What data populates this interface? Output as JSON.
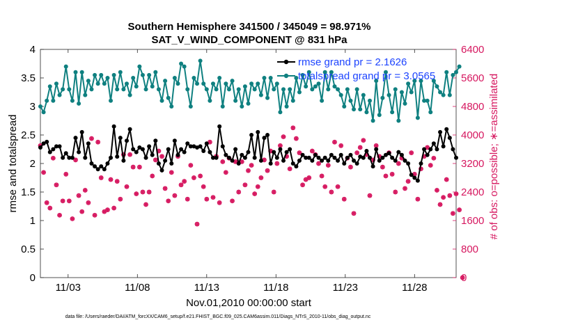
{
  "chart_data": {
    "type": "line",
    "title": "Southern Hemisphere 341500 / 345049 = 98.971%",
    "subtitle": "SAT_V_WIND_COMPONENT @ 831 hPa",
    "xlabel": "Nov.01,2010 00:00:00 start",
    "ylabel": "rmse and totalspread",
    "ylabel_right": "# of obs: o=possible; ∗=assimilated",
    "footnote": "data file: /Users/raeder/DAI/ATM_forcXX/CAM6_setup/f.e21.FHIST_BGC.f09_025.CAM6assim.011/Diags_NTrS_2010-11/obs_diag_output.nc",
    "xlim": [
      1.0,
      31.0
    ],
    "ylim": [
      0,
      4
    ],
    "ylim_right": [
      0,
      6400
    ],
    "x_ticks": [
      3,
      8,
      13,
      18,
      23,
      28
    ],
    "x_tick_labels": [
      "11/03",
      "11/08",
      "11/13",
      "11/18",
      "11/23",
      "11/28"
    ],
    "y_ticks": [
      0,
      0.5,
      1,
      1.5,
      2,
      2.5,
      3,
      3.5,
      4
    ],
    "y_tick_labels": [
      "0",
      "0.5",
      "1",
      "1.5",
      "2",
      "2.5",
      "3",
      "3.5",
      "4"
    ],
    "y_right_ticks": [
      0,
      800,
      1600,
      2400,
      3200,
      4000,
      4800,
      5600,
      6400
    ],
    "y_right_tick_labels": [
      "0",
      "800",
      "1600",
      "2400",
      "3200",
      "4000",
      "4800",
      "5600",
      "6400"
    ],
    "legend_position": "top-right",
    "colors": {
      "rmse": "#000000",
      "spread": "#0f8080",
      "obs": "#d6175f",
      "legend_text": "#1d44ff"
    },
    "series": [
      {
        "name": "rmse grand pr = 2.1626",
        "values": [
          2.28,
          2.35,
          2.38,
          2.2,
          2.25,
          2.3,
          2.3,
          2.1,
          2.18,
          2.1,
          2.1,
          2.45,
          2.2,
          2.55,
          2.1,
          2.35,
          2.0,
          1.95,
          1.9,
          1.95,
          1.9,
          2.0,
          2.1,
          2.65,
          2.12,
          2.45,
          2.05,
          2.4,
          2.6,
          2.25,
          2.2,
          2.28,
          2.25,
          2.1,
          2.3,
          2.15,
          2.4,
          2.0,
          1.88,
          2.05,
          2.25,
          2.0,
          2.4,
          2.15,
          2.25,
          2.2,
          2.35,
          2.3,
          2.3,
          2.28,
          2.3,
          2.22,
          2.35,
          2.2,
          2.1,
          2.1,
          2.65,
          2.3,
          2.15,
          2.1,
          2.05,
          2.25,
          2.0,
          2.15,
          2.1,
          2.2,
          2.5,
          2.1,
          2.55,
          2.05,
          2.45,
          2.5,
          2.0,
          2.2,
          2.1,
          2.25,
          2.05,
          2.2,
          2.25,
          2.0,
          1.95,
          2.05,
          2.15,
          2.1,
          2.1,
          2.05,
          2.15,
          2.1,
          2.05,
          2.1,
          2.05,
          2.15,
          2.1,
          2.05,
          2.15,
          2.0,
          2.1,
          2.15,
          2.05,
          2.0,
          2.12,
          2.1,
          2.22,
          2.1,
          1.95,
          2.25,
          2.05,
          2.1,
          2.15,
          2.18,
          2.1,
          2.05,
          2.2,
          2.15,
          2.05,
          2.0,
          1.8,
          1.75,
          1.7,
          2.0,
          2.25,
          2.15,
          2.25,
          2.35,
          2.25,
          2.55,
          2.3,
          2.6,
          2.45,
          2.25,
          2.1
        ]
      },
      {
        "name": "totalspread grand pr = 3.0565",
        "values": [
          3.0,
          2.9,
          3.1,
          3.35,
          3.1,
          3.4,
          3.2,
          3.3,
          3.7,
          3.3,
          3.1,
          3.6,
          3.05,
          3.6,
          3.2,
          3.45,
          3.3,
          3.55,
          3.4,
          3.55,
          3.4,
          3.5,
          3.1,
          3.55,
          3.3,
          3.6,
          3.3,
          3.4,
          3.2,
          3.5,
          3.35,
          3.7,
          3.55,
          3.3,
          3.55,
          3.35,
          3.6,
          3.3,
          3.1,
          3.45,
          3.15,
          3.0,
          3.5,
          3.4,
          3.75,
          3.7,
          3.3,
          3.0,
          3.5,
          3.4,
          3.8,
          3.4,
          3.3,
          3.1,
          3.4,
          3.3,
          3.5,
          3.0,
          3.4,
          3.3,
          3.45,
          3.1,
          3.3,
          3.0,
          3.35,
          3.05,
          3.4,
          3.3,
          3.4,
          3.2,
          3.5,
          3.15,
          3.5,
          3.3,
          3.4,
          2.9,
          3.3,
          3.0,
          3.3,
          3.1,
          3.5,
          3.25,
          3.55,
          3.35,
          3.6,
          3.3,
          3.35,
          3.4,
          3.1,
          3.6,
          3.3,
          3.6,
          3.35,
          3.3,
          3.2,
          3.0,
          3.3,
          3.1,
          2.95,
          3.3,
          2.95,
          3.2,
          2.9,
          3.1,
          2.75,
          3.45,
          2.85,
          3.15,
          3.6,
          3.2,
          2.9,
          3.3,
          2.75,
          3.25,
          3.05,
          3.4,
          3.25,
          3.45,
          2.8,
          3.45,
          3.1,
          3.1,
          2.9,
          3.45,
          3.35,
          3.25,
          3.2,
          3.6,
          3.2,
          3.55,
          3.6,
          3.7
        ]
      },
      {
        "name": "possible",
        "values": [
          3700,
          2950,
          2100,
          1950,
          3350,
          2600,
          1750,
          2150,
          2900,
          2150,
          1650,
          3300,
          2300,
          1850,
          2450,
          2100,
          3900,
          1750,
          3800,
          2800,
          1850,
          1900,
          2750,
          1950,
          2700,
          2200,
          3450,
          2550,
          3450,
          3100,
          2350,
          3100,
          2400,
          2050,
          2400,
          2850,
          3300,
          3550,
          3400,
          2500,
          2150,
          2950,
          2300,
          3400,
          2600,
          2700,
          2200,
          3150,
          2800,
          1500,
          2850,
          2550,
          2200,
          3800,
          2250,
          3400,
          2100,
          3250,
          2950,
          3350,
          2150,
          3250,
          2400,
          3250,
          2600,
          3000,
          3150,
          2350,
          2550,
          2800,
          3300,
          3000,
          3550,
          2400,
          3200,
          3700,
          3950,
          3400,
          3050,
          4200,
          3900,
          3500,
          2600,
          2750,
          2800,
          3550,
          3450,
          3200,
          2850,
          2550,
          3150,
          2400,
          3800,
          2550,
          3700,
          2200,
          3350,
          3100,
          1800,
          3500,
          3650,
          3850,
          3450,
          2300,
          3300,
          3700,
          3400,
          3100,
          2850,
          3500,
          2900,
          2400,
          3200,
          3350,
          2500,
          2700,
          3500,
          2900,
          2200,
          3050,
          3400,
          3650,
          3150,
          3350,
          2450,
          2050,
          2250,
          2750,
          2300,
          1800,
          2350,
          1900,
          0
        ]
      },
      {
        "name": "assimilated",
        "values": [
          3700,
          2950,
          2100,
          1950,
          3350,
          2600,
          1750,
          2150,
          2900,
          2150,
          1650,
          3300,
          2300,
          1850,
          2450,
          2100,
          3900,
          1750,
          3800,
          2800,
          1850,
          1900,
          2750,
          1950,
          2700,
          2200,
          3450,
          2550,
          3450,
          3100,
          2350,
          3100,
          2400,
          2050,
          2400,
          2850,
          3300,
          3550,
          3400,
          2500,
          2150,
          2950,
          2300,
          3400,
          2600,
          2700,
          2200,
          3150,
          2800,
          1500,
          2850,
          2550,
          2200,
          3800,
          2250,
          3400,
          2100,
          3250,
          2950,
          3350,
          2150,
          3250,
          2400,
          3250,
          2600,
          3000,
          3150,
          2350,
          2550,
          2800,
          3300,
          3000,
          3550,
          2400,
          3200,
          3700,
          3950,
          3400,
          3050,
          4200,
          3900,
          3500,
          2600,
          2750,
          2800,
          3550,
          3450,
          3200,
          2850,
          2550,
          3150,
          2400,
          3800,
          2550,
          3700,
          2200,
          3350,
          3100,
          1800,
          3500,
          3650,
          3850,
          3450,
          2300,
          3300,
          3700,
          3400,
          3100,
          2850,
          3500,
          2900,
          2400,
          3200,
          3350,
          2500,
          2700,
          3500,
          2900,
          2200,
          3050,
          3400,
          3650,
          3150,
          3350,
          2450,
          2050,
          2250,
          2750,
          2300,
          1800,
          2350,
          1900,
          0
        ]
      }
    ]
  }
}
